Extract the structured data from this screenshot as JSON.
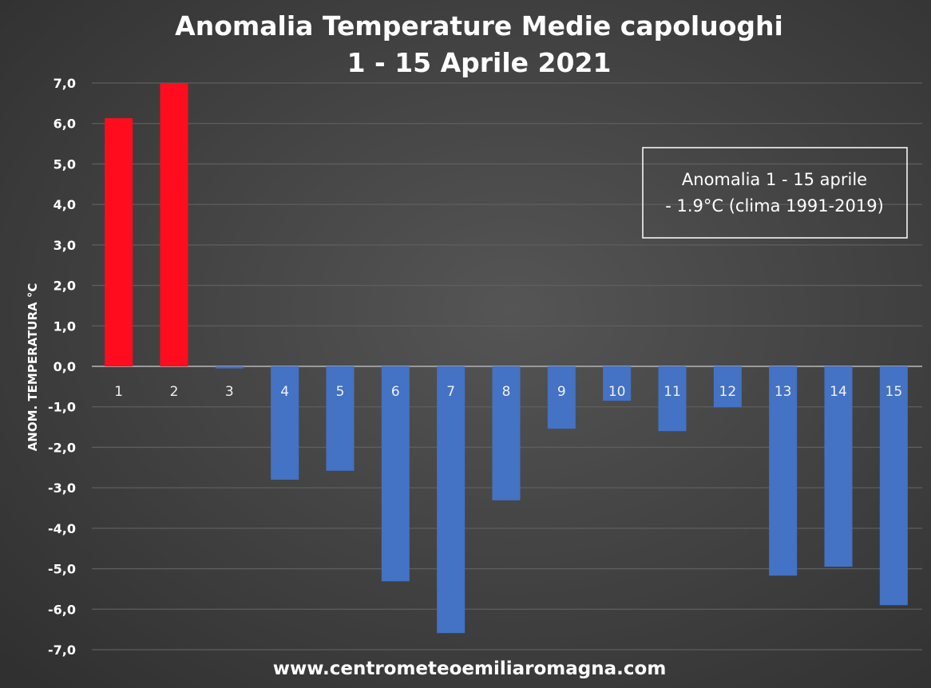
{
  "chart_data": {
    "type": "bar",
    "title": "Anomalia Temperature Medie capoluoghi",
    "subtitle": "1 - 15 Aprile 2021",
    "xlabel": "",
    "ylabel": "ANOM. TEMPERATURA °C",
    "ylim": [
      -7.0,
      7.0
    ],
    "yticks": [
      "7,0",
      "6,0",
      "5,0",
      "4,0",
      "3,0",
      "2,0",
      "1,0",
      "0,0",
      "-1,0",
      "-2,0",
      "-3,0",
      "-4,0",
      "-5,0",
      "-6,0",
      "-7,0"
    ],
    "categories": [
      "1",
      "2",
      "3",
      "4",
      "5",
      "6",
      "7",
      "8",
      "9",
      "10",
      "11",
      "12",
      "13",
      "14",
      "15"
    ],
    "values": [
      6.13,
      7.0,
      -0.05,
      -2.8,
      -2.58,
      -5.31,
      -6.59,
      -3.31,
      -1.54,
      -0.85,
      -1.6,
      -1.01,
      -5.17,
      -4.95,
      -5.9
    ],
    "grid": true,
    "annotation": [
      "Anomalia 1 - 15 aprile",
      "- 1.9°C (clima 1991-2019)"
    ],
    "footer": "www.centrometeoemiliaromagna.com",
    "colors": {
      "positive": "#ff0d1e",
      "negative": "#4472c4",
      "background": "#3c3c3c",
      "grid": "#5e5e5e",
      "text": "#ffffff"
    }
  }
}
